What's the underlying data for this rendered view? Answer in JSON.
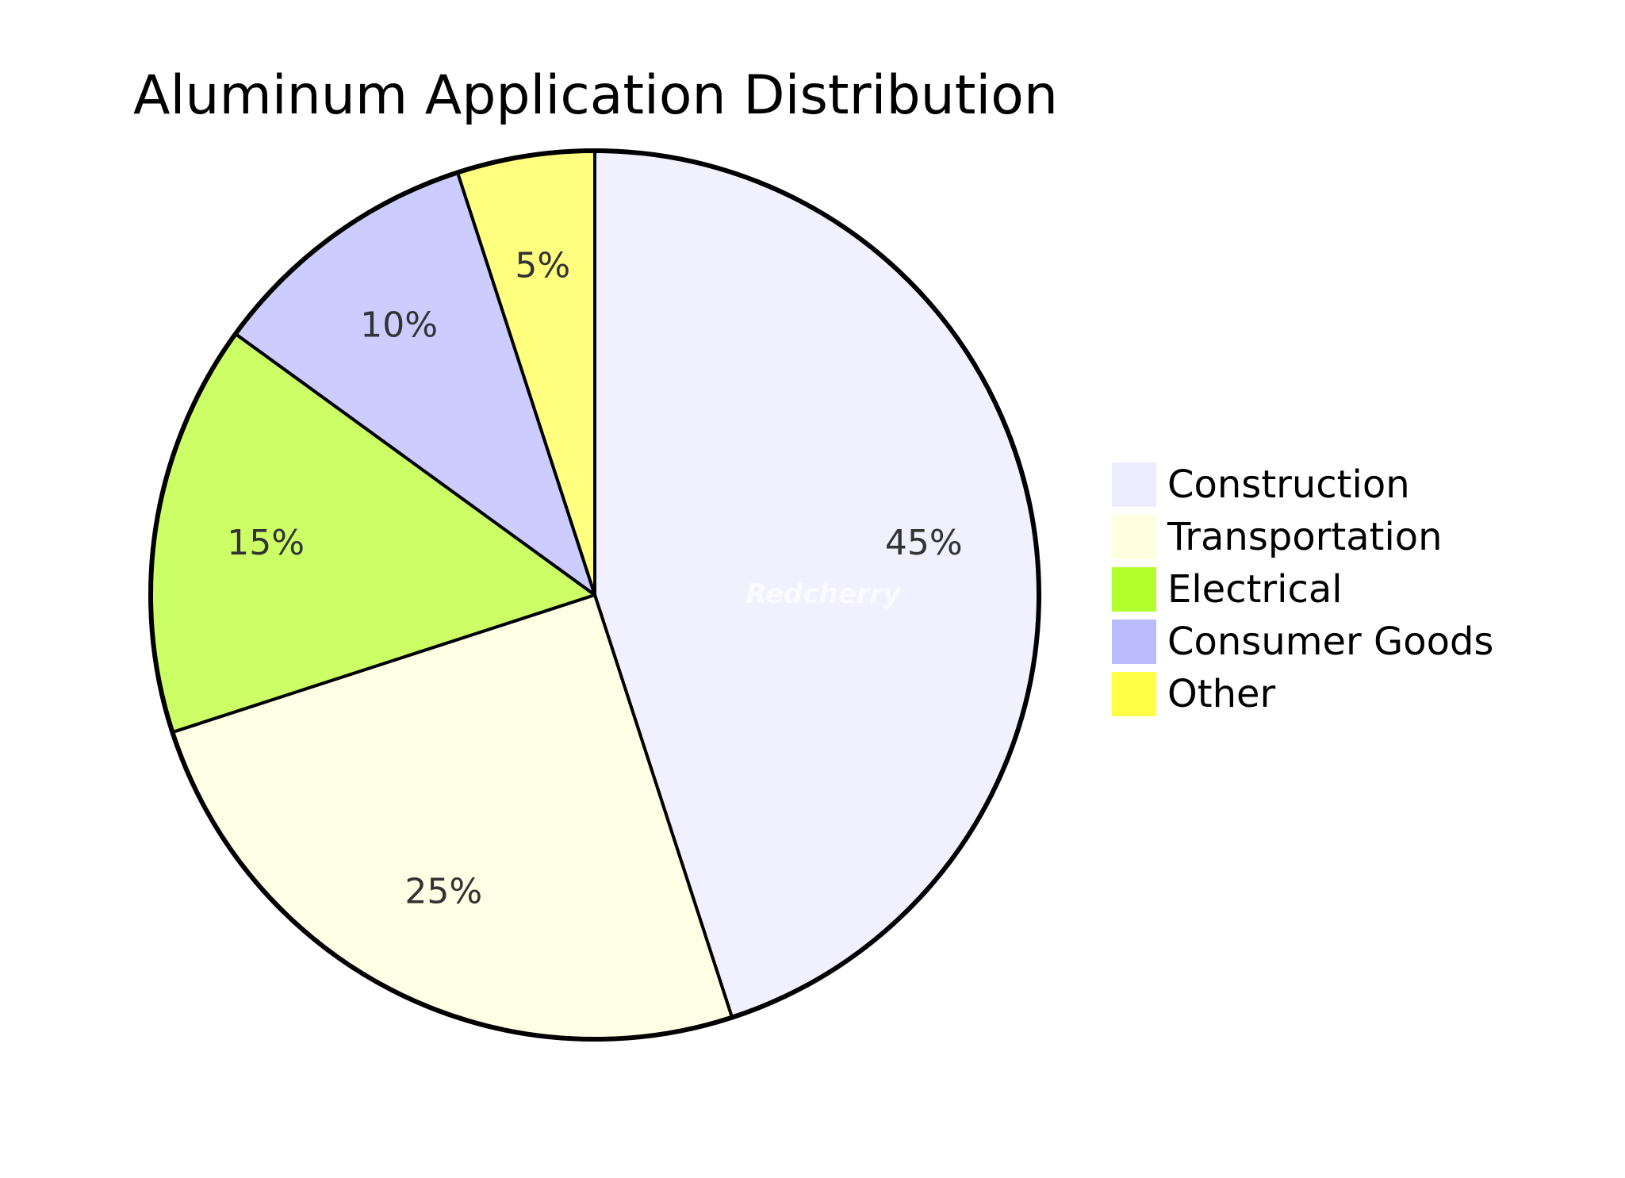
{
  "chart_data": {
    "type": "pie",
    "title": "Aluminum Application Distribution",
    "slices": [
      {
        "label": "Construction",
        "value": 45,
        "display": "45%",
        "color": "#f0f0ff"
      },
      {
        "label": "Transportation",
        "value": 25,
        "display": "25%",
        "color": "#ffffe6"
      },
      {
        "label": "Electrical",
        "value": 15,
        "display": "15%",
        "color": "#ccff66"
      },
      {
        "label": "Consumer Goods",
        "value": 10,
        "display": "10%",
        "color": "#ccccff"
      },
      {
        "label": "Other",
        "value": 5,
        "display": "5%",
        "color": "#ffff80"
      }
    ],
    "legend_position": "right",
    "legend_colors": [
      "#ececfe",
      "#fefee0",
      "#b2ff2b",
      "#babafe",
      "#fefe45"
    ],
    "watermark": "Redcherry"
  }
}
